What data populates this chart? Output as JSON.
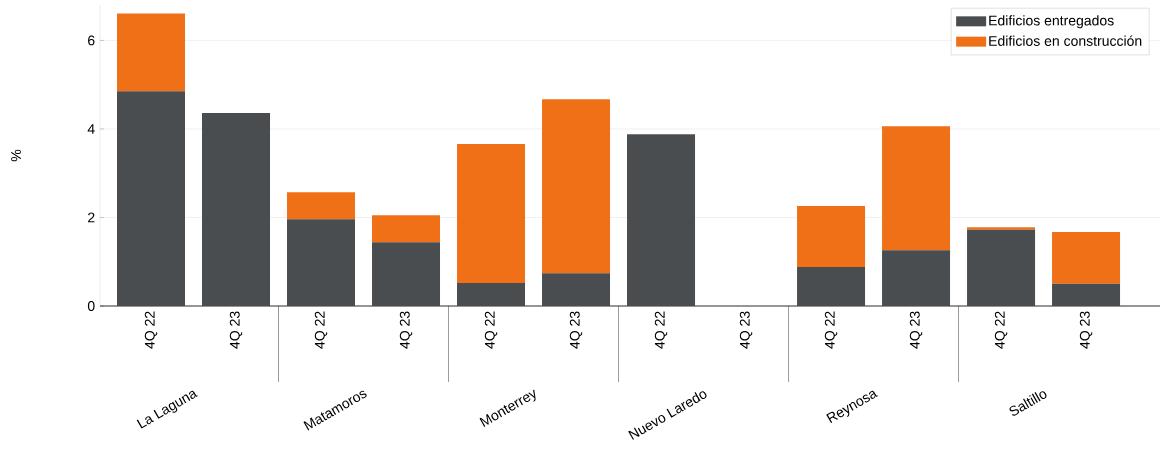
{
  "chart_data": {
    "type": "bar",
    "stacked": true,
    "ylabel": "%",
    "categories": [
      "4Q 22",
      "4Q 23",
      "4Q 22",
      "4Q 23",
      "4Q 22",
      "4Q 23",
      "4Q 22",
      "4Q 23",
      "4Q 22",
      "4Q 23",
      "4Q 22",
      "4Q 23"
    ],
    "series": [
      {
        "name": "Edificios entregados",
        "color": "#4a4d50",
        "values": [
          4.85,
          4.36,
          1.96,
          1.44,
          0.52,
          0.74,
          3.88,
          0,
          0.88,
          1.26,
          1.72,
          0.5
        ]
      },
      {
        "name": "Edificios en construcción",
        "color": "#f07018",
        "values": [
          1.76,
          0,
          0.61,
          0.61,
          3.14,
          3.93,
          0,
          0,
          1.38,
          2.8,
          0.06,
          1.17
        ]
      }
    ],
    "ylim": [
      0,
      6.8
    ],
    "yticks": [
      0,
      2,
      4,
      6
    ],
    "grid": "y",
    "legend": "top right",
    "annotations": [
      "La Laguna",
      "Matamoros",
      "Monterrey",
      "Nuevo Laredo",
      "Reynosa",
      "Saltillo"
    ]
  }
}
